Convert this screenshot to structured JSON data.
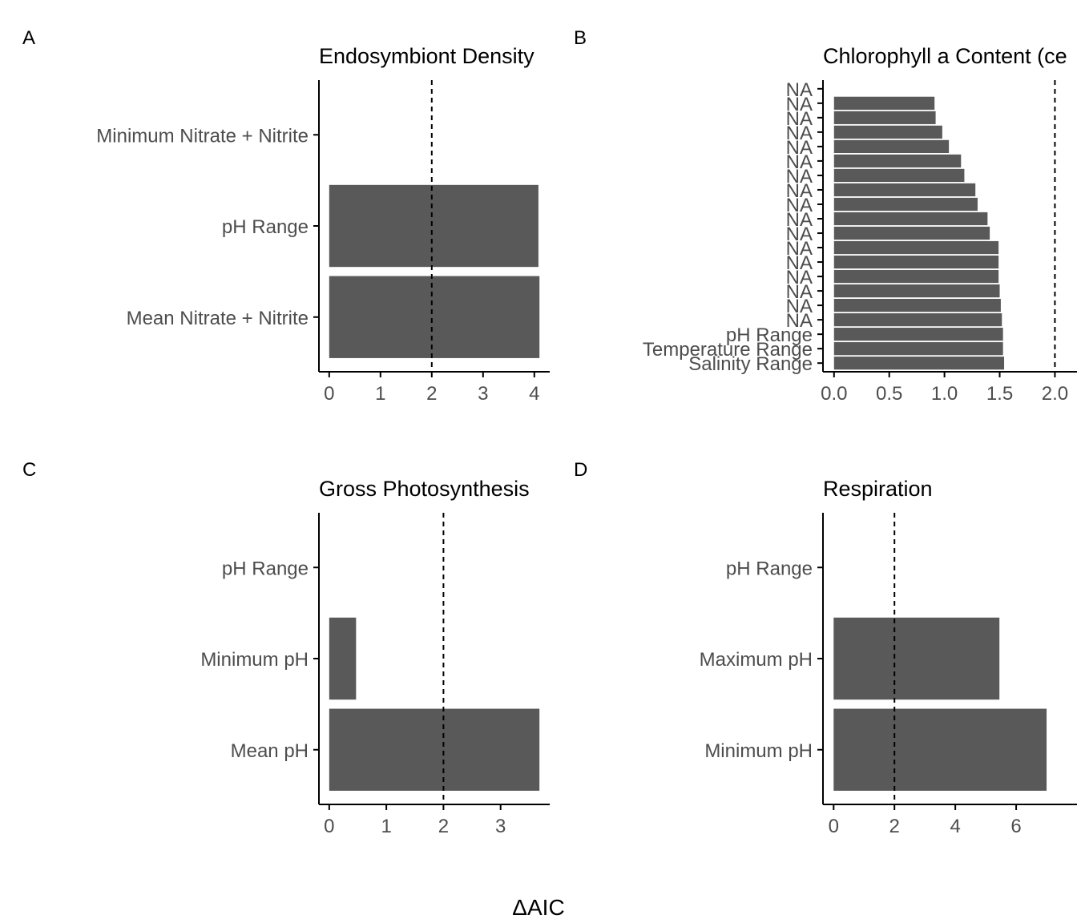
{
  "figure": {
    "xlabel": "ΔAIC"
  },
  "colors": {
    "bar": "#595959",
    "axis": "#000000",
    "tick_label": "#4d4d4d",
    "reference_line": "#000000"
  },
  "chart_data": [
    {
      "panel": "A",
      "title": "Endosymbiont Density",
      "type": "bar",
      "orientation": "horizontal",
      "categories": [
        "Minimum Nitrate + Nitrite",
        "pH Range",
        "Mean Nitrate + Nitrite"
      ],
      "values": [
        0,
        4.08,
        4.1
      ],
      "xticks": [
        0,
        1,
        2,
        3,
        4
      ],
      "xlim": [
        -0.2,
        4.3
      ],
      "reference_line": 2,
      "grid": false
    },
    {
      "panel": "B",
      "title": "Chlorophyll a Content (ce",
      "type": "bar",
      "orientation": "horizontal",
      "categories": [
        "NA",
        "NA",
        "NA",
        "NA",
        "NA",
        "NA",
        "NA",
        "NA",
        "NA",
        "NA",
        "NA",
        "NA",
        "NA",
        "NA",
        "NA",
        "NA",
        "NA",
        "pH Range",
        "Temperature Range",
        "Salinity Range"
      ],
      "values": [
        0,
        0.91,
        0.92,
        0.98,
        1.04,
        1.15,
        1.18,
        1.28,
        1.3,
        1.39,
        1.41,
        1.49,
        1.49,
        1.49,
        1.5,
        1.51,
        1.52,
        1.53,
        1.53,
        1.54
      ],
      "xticks": [
        0.0,
        0.5,
        1.0,
        1.5,
        2.0
      ],
      "xtick_labels": [
        "0.0",
        "0.5",
        "1.0",
        "1.5",
        "2.0"
      ],
      "xlim": [
        -0.1,
        2.2
      ],
      "reference_line": 2,
      "grid": false
    },
    {
      "panel": "C",
      "title": "Gross Photosynthesis",
      "type": "bar",
      "orientation": "horizontal",
      "categories": [
        "pH Range",
        "Minimum pH",
        "Mean pH"
      ],
      "values": [
        0,
        0.47,
        3.68
      ],
      "xticks": [
        0,
        1,
        2,
        3
      ],
      "xlim": [
        -0.18,
        3.86
      ],
      "reference_line": 2,
      "grid": false
    },
    {
      "panel": "D",
      "title": "Respiration",
      "type": "bar",
      "orientation": "horizontal",
      "categories": [
        "pH Range",
        "Maximum pH",
        "Minimum pH"
      ],
      "values": [
        0,
        5.45,
        7.0
      ],
      "xticks": [
        0,
        2,
        4,
        6
      ],
      "xlim": [
        -0.35,
        8.0
      ],
      "reference_line": 2,
      "grid": false
    }
  ]
}
